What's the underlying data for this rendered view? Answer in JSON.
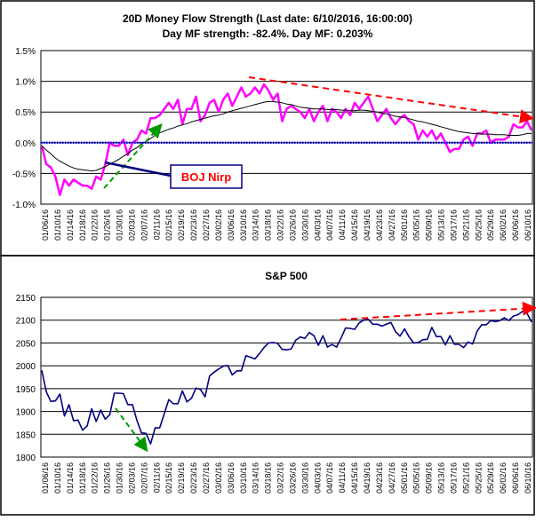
{
  "chart_data": [
    {
      "type": "line",
      "title": "20D Money Flow Strength (Last date: 6/10/2016, 16:00:00)",
      "subtitle": "Day MF strength: -82.4%. Day MF: 0.203%",
      "ylim": [
        -1.0,
        1.5
      ],
      "yticks": [
        "1.5%",
        "1.0%",
        "0.5%",
        "0.0%",
        "-0.5%",
        "-1.0%"
      ],
      "ytick_values": [
        1.5,
        1.0,
        0.5,
        0.0,
        -0.5,
        -1.0
      ],
      "grid": true,
      "x": [
        "01/06/16",
        "01/07/16",
        "01/08/16",
        "01/11/16",
        "01/12/16",
        "01/13/16",
        "01/14/16",
        "01/15/16",
        "01/19/16",
        "01/20/16",
        "01/21/16",
        "01/22/16",
        "01/25/16",
        "01/26/16",
        "01/27/16",
        "01/28/16",
        "01/29/16",
        "02/01/16",
        "02/02/16",
        "02/03/16",
        "02/04/16",
        "02/05/16",
        "02/08/16",
        "02/09/16",
        "02/10/16",
        "02/11/16",
        "02/12/16",
        "02/16/16",
        "02/17/16",
        "02/18/16",
        "02/19/16",
        "02/22/16",
        "02/23/16",
        "02/24/16",
        "02/25/16",
        "02/26/16",
        "02/29/16",
        "03/01/16",
        "03/02/16",
        "03/03/16",
        "03/04/16",
        "03/07/16",
        "03/08/16",
        "03/09/16",
        "03/10/16",
        "03/11/16",
        "03/14/16",
        "03/15/16",
        "03/16/16",
        "03/17/16",
        "03/18/16",
        "03/21/16",
        "03/22/16",
        "03/23/16",
        "03/24/16",
        "03/28/16",
        "03/29/16",
        "03/30/16",
        "03/31/16",
        "04/01/16",
        "04/04/16",
        "04/05/16",
        "04/06/16",
        "04/07/16",
        "04/08/16",
        "04/11/16",
        "04/12/16",
        "04/13/16",
        "04/14/16",
        "04/15/16",
        "04/18/16",
        "04/19/16",
        "04/20/16",
        "04/21/16",
        "04/22/16",
        "04/25/16",
        "04/26/16",
        "04/27/16",
        "04/28/16",
        "04/29/16",
        "05/02/16",
        "05/03/16",
        "05/04/16",
        "05/05/16",
        "05/06/16",
        "05/09/16",
        "05/10/16",
        "05/11/16",
        "05/12/16",
        "05/13/16",
        "05/16/16",
        "05/17/16",
        "05/18/16",
        "05/19/16",
        "05/20/16",
        "05/23/16",
        "05/24/16",
        "05/25/16",
        "05/26/16",
        "05/27/16",
        "05/31/16",
        "06/01/16",
        "06/02/16",
        "06/03/16",
        "06/06/16",
        "06/07/16",
        "06/08/16",
        "06/09/16",
        "06/10/16"
      ],
      "x_tick_labels": [
        "01/06/16",
        "01/10/16",
        "01/14/16",
        "01/18/16",
        "01/22/16",
        "01/26/16",
        "01/30/16",
        "02/03/16",
        "02/07/16",
        "02/11/16",
        "02/15/16",
        "02/19/16",
        "02/23/16",
        "02/27/16",
        "03/02/16",
        "03/06/16",
        "03/10/16",
        "03/14/16",
        "03/18/16",
        "03/22/16",
        "03/26/16",
        "03/30/16",
        "04/03/16",
        "04/07/16",
        "04/11/16",
        "04/15/16",
        "04/19/16",
        "04/23/16",
        "04/27/16",
        "05/01/16",
        "05/05/16",
        "05/09/16",
        "05/13/16",
        "05/17/16",
        "05/21/16",
        "05/25/16",
        "05/29/16",
        "06/02/16",
        "06/06/16",
        "06/10/16"
      ],
      "series": [
        {
          "color": "#ff00ff",
          "values": [
            -0.05,
            -0.35,
            -0.4,
            -0.55,
            -0.85,
            -0.6,
            -0.7,
            -0.6,
            -0.65,
            -0.7,
            -0.7,
            -0.75,
            -0.55,
            -0.6,
            -0.35,
            0.0,
            -0.05,
            -0.05,
            0.05,
            -0.2,
            0.0,
            0.05,
            0.2,
            0.15,
            0.4,
            0.4,
            0.45,
            0.55,
            0.65,
            0.55,
            0.7,
            0.3,
            0.55,
            0.55,
            0.75,
            0.35,
            0.45,
            0.65,
            0.7,
            0.5,
            0.7,
            0.8,
            0.6,
            0.75,
            0.9,
            0.75,
            0.8,
            0.9,
            0.8,
            0.95,
            0.85,
            0.7,
            0.8,
            0.35,
            0.55,
            0.6,
            0.55,
            0.5,
            0.4,
            0.55,
            0.35,
            0.5,
            0.6,
            0.35,
            0.55,
            0.5,
            0.4,
            0.55,
            0.45,
            0.65,
            0.55,
            0.65,
            0.75,
            0.55,
            0.35,
            0.45,
            0.55,
            0.4,
            0.3,
            0.4,
            0.45,
            0.35,
            0.3,
            0.05,
            0.2,
            0.1,
            0.2,
            0.05,
            0.15,
            0.0,
            -0.15,
            -0.1,
            -0.1,
            0.05,
            0.1,
            -0.05,
            0.15,
            0.15,
            0.2,
            0.0,
            0.05,
            0.05,
            0.05,
            0.1,
            0.3,
            0.25,
            0.25,
            0.35,
            0.2
          ]
        },
        {
          "color": "#000000",
          "values": [
            -0.05,
            -0.12,
            -0.18,
            -0.25,
            -0.3,
            -0.34,
            -0.38,
            -0.41,
            -0.43,
            -0.44,
            -0.45,
            -0.46,
            -0.45,
            -0.42,
            -0.39,
            -0.35,
            -0.31,
            -0.27,
            -0.22,
            -0.18,
            -0.12,
            -0.08,
            -0.02,
            0.02,
            0.07,
            0.12,
            0.16,
            0.19,
            0.22,
            0.24,
            0.27,
            0.29,
            0.31,
            0.34,
            0.36,
            0.38,
            0.4,
            0.42,
            0.44,
            0.45,
            0.47,
            0.5,
            0.52,
            0.54,
            0.56,
            0.58,
            0.6,
            0.62,
            0.64,
            0.66,
            0.67,
            0.67,
            0.66,
            0.65,
            0.63,
            0.62,
            0.6,
            0.58,
            0.57,
            0.56,
            0.55,
            0.55,
            0.55,
            0.54,
            0.54,
            0.54,
            0.53,
            0.53,
            0.52,
            0.52,
            0.53,
            0.53,
            0.52,
            0.51,
            0.5,
            0.48,
            0.47,
            0.45,
            0.43,
            0.42,
            0.41,
            0.39,
            0.37,
            0.35,
            0.34,
            0.32,
            0.3,
            0.28,
            0.26,
            0.24,
            0.22,
            0.2,
            0.18,
            0.17,
            0.16,
            0.15,
            0.15,
            0.14,
            0.14,
            0.14,
            0.13,
            0.13,
            0.13,
            0.12,
            0.12,
            0.12,
            0.13,
            0.15,
            0.15
          ]
        },
        {
          "color": "#0000ff",
          "style": "dotted",
          "values_constant": 0.0
        }
      ],
      "annotations": [
        {
          "text": "BOJ Nirp",
          "color": "#ff0000"
        }
      ]
    },
    {
      "type": "line",
      "title": "S&P 500",
      "ylim": [
        1800,
        2150
      ],
      "yticks": [
        "2150",
        "2100",
        "2050",
        "2000",
        "1950",
        "1900",
        "1850",
        "1800"
      ],
      "ytick_values": [
        2150,
        2100,
        2050,
        2000,
        1950,
        1900,
        1850,
        1800
      ],
      "grid": true,
      "x_tick_labels": [
        "01/06/16",
        "01/10/16",
        "01/14/16",
        "01/18/16",
        "01/22/16",
        "01/26/16",
        "01/30/16",
        "02/03/16",
        "02/07/16",
        "02/11/16",
        "02/15/16",
        "02/19/16",
        "02/23/16",
        "02/27/16",
        "03/02/16",
        "03/06/16",
        "03/10/16",
        "03/14/16",
        "03/18/16",
        "03/22/16",
        "03/26/16",
        "03/30/16",
        "04/03/16",
        "04/07/16",
        "04/11/16",
        "04/15/16",
        "04/19/16",
        "04/23/16",
        "04/27/16",
        "05/01/16",
        "05/05/16",
        "05/09/16",
        "05/13/16",
        "05/17/16",
        "05/21/16",
        "05/25/16",
        "05/29/16",
        "06/02/16",
        "06/06/16",
        "06/10/16"
      ],
      "series": [
        {
          "color": "#000080",
          "values": [
            1990,
            1943,
            1922,
            1923,
            1938,
            1890,
            1915,
            1880,
            1881,
            1859,
            1868,
            1906,
            1878,
            1903,
            1883,
            1893,
            1940,
            1940,
            1939,
            1915,
            1915,
            1880,
            1853,
            1852,
            1829,
            1864,
            1864,
            1895,
            1926,
            1917,
            1917,
            1945,
            1921,
            1929,
            1951,
            1948,
            1932,
            1978,
            1986,
            1993,
            1999,
            2001,
            1980,
            1989,
            1989,
            2022,
            2019,
            2015,
            2027,
            2040,
            2050,
            2051,
            2049,
            2036,
            2035,
            2037,
            2056,
            2063,
            2060,
            2073,
            2066,
            2045,
            2066,
            2041,
            2047,
            2041,
            2061,
            2083,
            2082,
            2080,
            2094,
            2100,
            2102,
            2091,
            2091,
            2087,
            2091,
            2095,
            2075,
            2065,
            2081,
            2063,
            2050,
            2051,
            2057,
            2058,
            2084,
            2064,
            2064,
            2046,
            2066,
            2047,
            2047,
            2040,
            2052,
            2048,
            2076,
            2090,
            2090,
            2099,
            2097,
            2099,
            2105,
            2099,
            2109,
            2112,
            2119,
            2115,
            2096
          ]
        }
      ]
    }
  ]
}
